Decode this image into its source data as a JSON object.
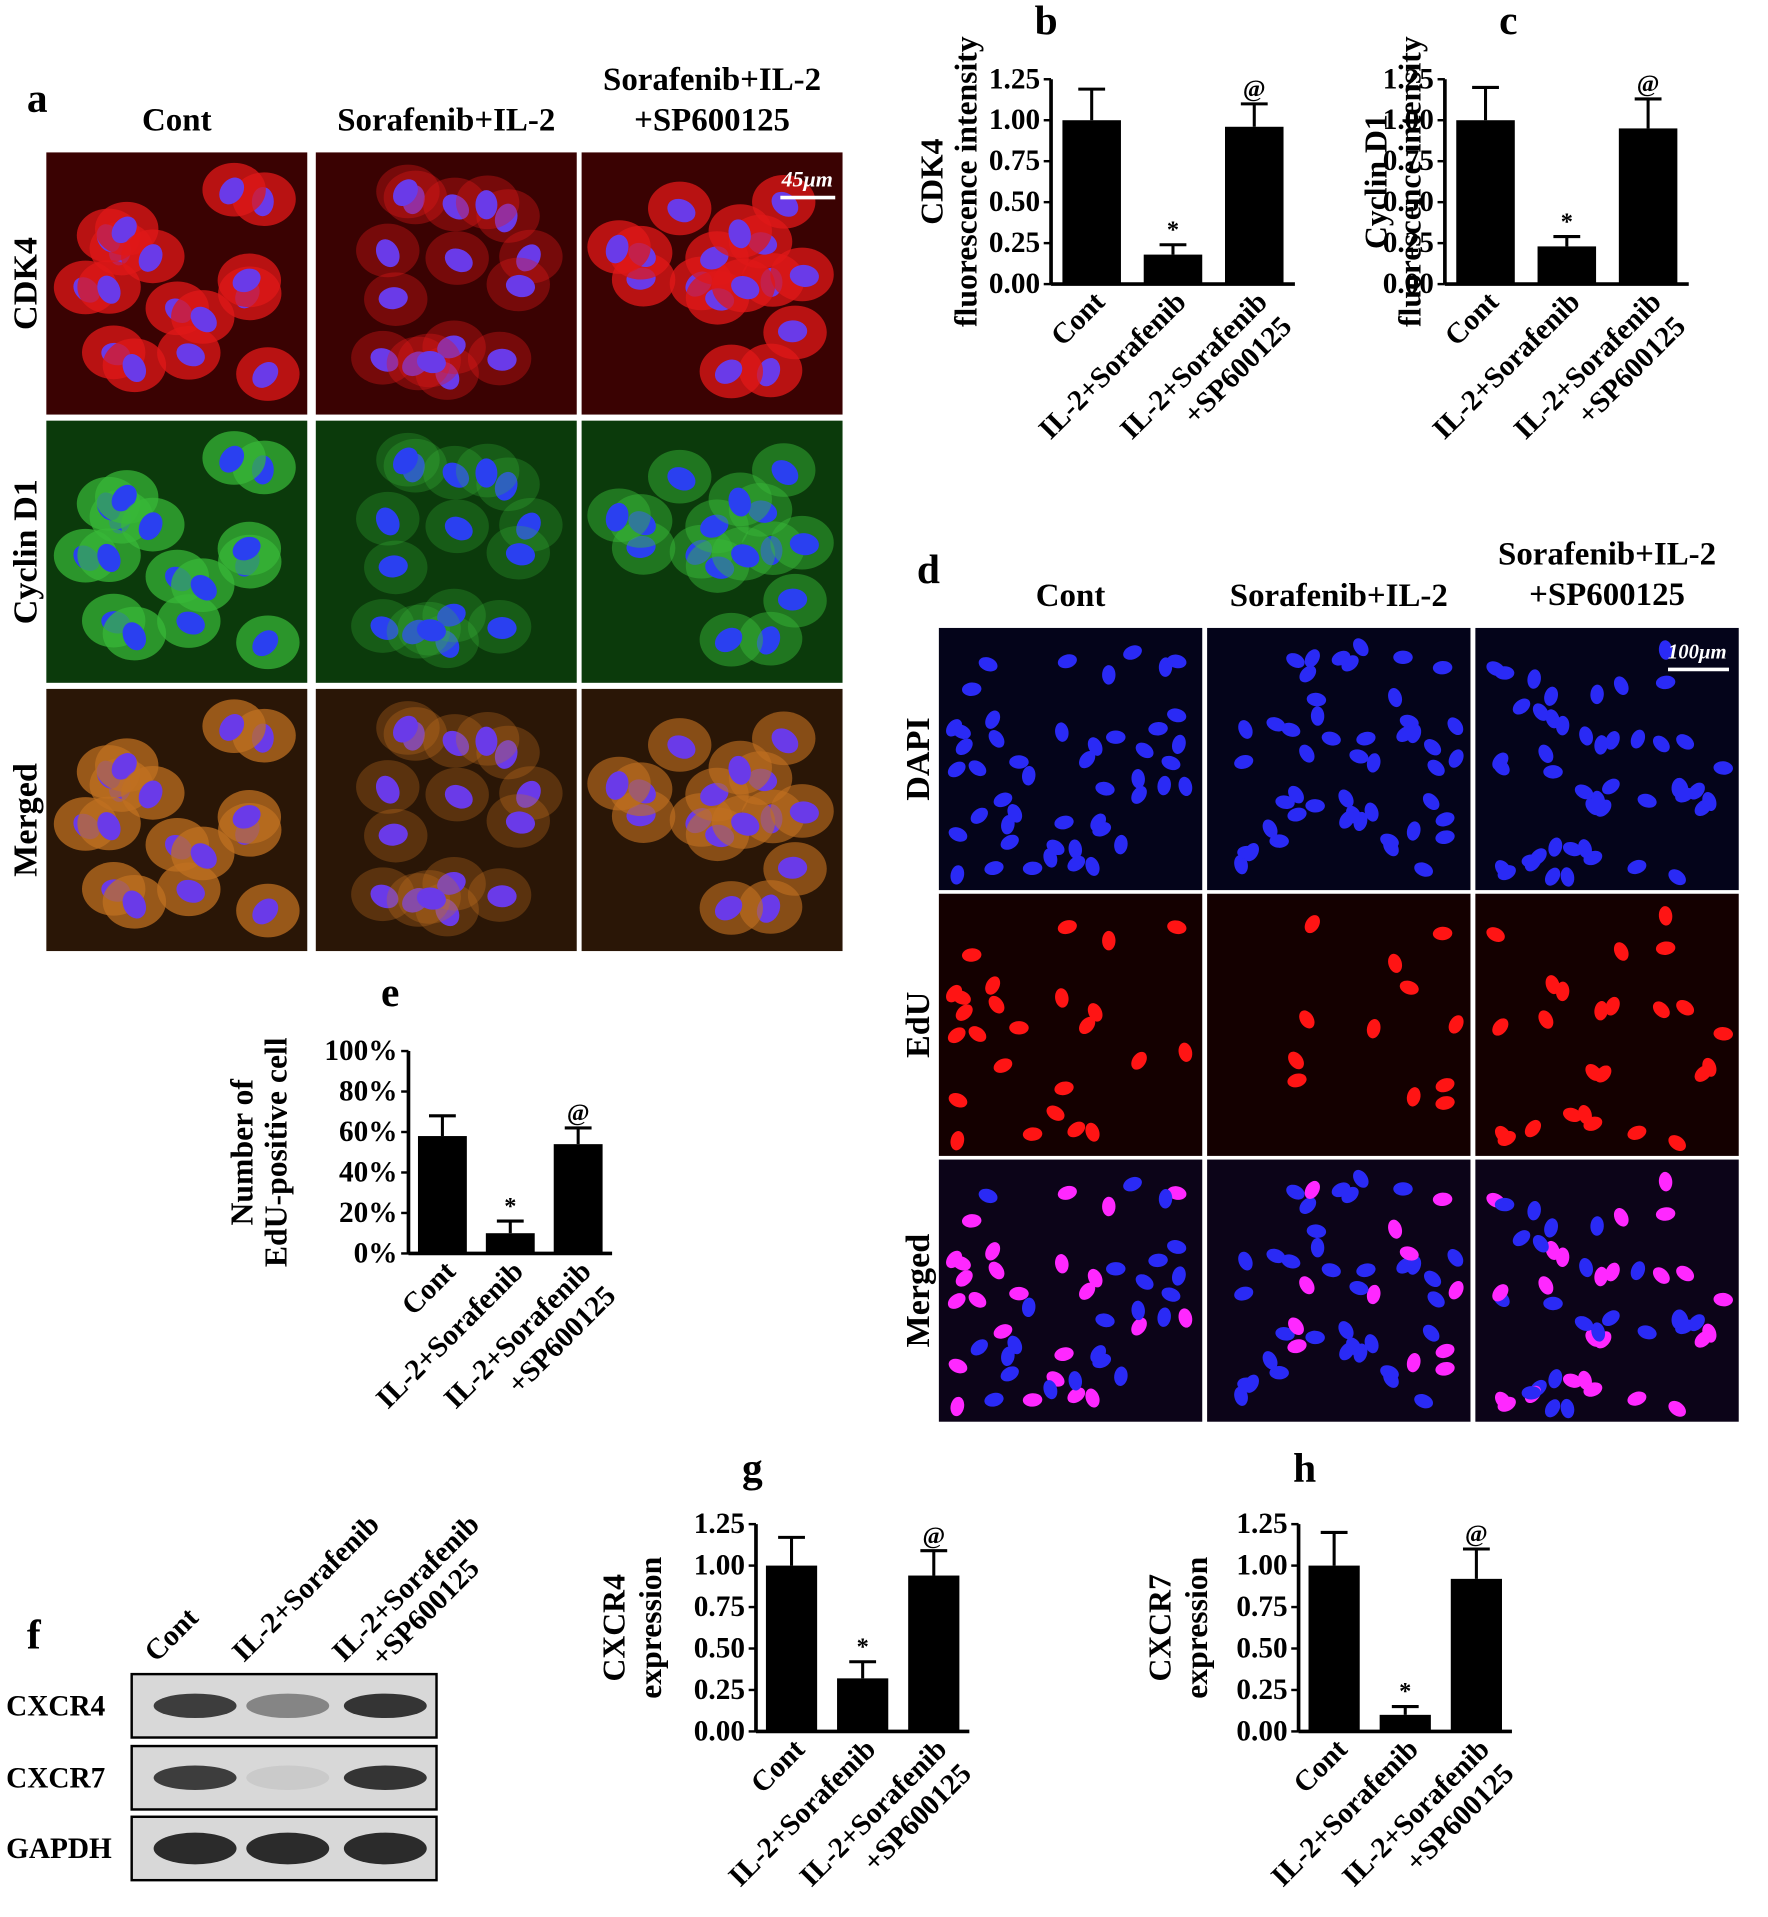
{
  "panel_a": {
    "label": "a",
    "columns": [
      [
        "Cont"
      ],
      [
        "Sorafenib+IL-2"
      ],
      [
        "Sorafenib+IL-2",
        "+SP600125"
      ]
    ],
    "rows": [
      "CDK4",
      "Cyclin D1",
      "Merged"
    ],
    "scale_bar": "45μm"
  },
  "panel_d": {
    "label": "d",
    "columns": [
      [
        "Cont"
      ],
      [
        "Sorafenib+IL-2"
      ],
      [
        "Sorafenib+IL-2",
        "+SP600125"
      ]
    ],
    "rows": [
      "DAPI",
      "EdU",
      "Merged"
    ],
    "scale_bar": "100μm"
  },
  "panel_f": {
    "label": "f",
    "lanes": [
      [
        "Cont"
      ],
      [
        "IL-2+Sorafenib"
      ],
      [
        "IL-2+Sorafenib",
        "+SP600125"
      ]
    ],
    "rows": [
      "CXCR4",
      "CXCR7",
      "GAPDH"
    ]
  },
  "chart_data": [
    {
      "type": "bar",
      "label": "b",
      "ylabel": [
        "CDK4",
        "fluorescence intensity"
      ],
      "categories": [
        [
          "Cont"
        ],
        [
          "IL-2+Sorafenib"
        ],
        [
          "IL-2+Sorafenib",
          "+SP600125"
        ]
      ],
      "values": [
        1.0,
        0.18,
        0.96
      ],
      "errors": [
        0.19,
        0.06,
        0.14
      ],
      "annotations": [
        null,
        "*",
        "@"
      ],
      "color": "#000000",
      "ylim": [
        0,
        1.25
      ],
      "yticks": [
        {
          "value": 0,
          "label": "0.00"
        },
        {
          "value": 0.25,
          "label": "0.25"
        },
        {
          "value": 0.5,
          "label": "0.50"
        },
        {
          "value": 0.75,
          "label": "0.75"
        },
        {
          "value": 1,
          "label": "1.00"
        },
        {
          "value": 1.25,
          "label": "1.25"
        }
      ]
    },
    {
      "type": "bar",
      "label": "c",
      "ylabel": [
        "Cyclin D1",
        "fluorescence intensity"
      ],
      "categories": [
        [
          "Cont"
        ],
        [
          "IL-2+Sorafenib"
        ],
        [
          "IL-2+Sorafenib",
          "+SP600125"
        ]
      ],
      "values": [
        1.0,
        0.23,
        0.95
      ],
      "errors": [
        0.2,
        0.06,
        0.18
      ],
      "annotations": [
        null,
        "*",
        "@"
      ],
      "color": "#000000",
      "ylim": [
        0,
        1.25
      ],
      "yticks": [
        {
          "value": 0,
          "label": "0.00"
        },
        {
          "value": 0.25,
          "label": "0.25"
        },
        {
          "value": 0.5,
          "label": "0.50"
        },
        {
          "value": 0.75,
          "label": "0.75"
        },
        {
          "value": 1,
          "label": "1.00"
        },
        {
          "value": 1.25,
          "label": "1.25"
        }
      ]
    },
    {
      "type": "bar",
      "label": "e",
      "ylabel": [
        "Number of",
        "EdU-positive cell"
      ],
      "categories": [
        [
          "Cont"
        ],
        [
          "IL-2+Sorafenib"
        ],
        [
          "IL-2+Sorafenib",
          "+SP600125"
        ]
      ],
      "values": [
        58,
        10,
        54
      ],
      "errors": [
        10,
        6,
        8
      ],
      "annotations": [
        null,
        "*",
        "@"
      ],
      "color": "#000000",
      "ylim": [
        0,
        100
      ],
      "yticks": [
        {
          "value": 0,
          "label": "0%"
        },
        {
          "value": 20,
          "label": "20%"
        },
        {
          "value": 40,
          "label": "40%"
        },
        {
          "value": 60,
          "label": "60%"
        },
        {
          "value": 80,
          "label": "80%"
        },
        {
          "value": 100,
          "label": "100%"
        }
      ]
    },
    {
      "type": "bar",
      "label": "g",
      "ylabel": [
        "CXCR4",
        "expression"
      ],
      "categories": [
        [
          "Cont"
        ],
        [
          "IL-2+Sorafenib"
        ],
        [
          "IL-2+Sorafenib",
          "+SP600125"
        ]
      ],
      "values": [
        1.0,
        0.32,
        0.94
      ],
      "errors": [
        0.17,
        0.1,
        0.15
      ],
      "annotations": [
        null,
        "*",
        "@"
      ],
      "color": "#000000",
      "ylim": [
        0,
        1.25
      ],
      "yticks": [
        {
          "value": 0,
          "label": "0.00"
        },
        {
          "value": 0.25,
          "label": "0.25"
        },
        {
          "value": 0.5,
          "label": "0.50"
        },
        {
          "value": 0.75,
          "label": "0.75"
        },
        {
          "value": 1,
          "label": "1.00"
        },
        {
          "value": 1.25,
          "label": "1.25"
        }
      ]
    },
    {
      "type": "bar",
      "label": "h",
      "ylabel": [
        "CXCR7",
        "expression"
      ],
      "categories": [
        [
          "Cont"
        ],
        [
          "IL-2+Sorafenib"
        ],
        [
          "IL-2+Sorafenib",
          "+SP600125"
        ]
      ],
      "values": [
        1.0,
        0.1,
        0.92
      ],
      "errors": [
        0.2,
        0.05,
        0.18
      ],
      "annotations": [
        null,
        "*",
        "@"
      ],
      "color": "#000000",
      "ylim": [
        0,
        1.25
      ],
      "yticks": [
        {
          "value": 0,
          "label": "0.00"
        },
        {
          "value": 0.25,
          "label": "0.25"
        },
        {
          "value": 0.5,
          "label": "0.50"
        },
        {
          "value": 0.75,
          "label": "0.75"
        },
        {
          "value": 1,
          "label": "1.00"
        },
        {
          "value": 1.25,
          "label": "1.25"
        }
      ]
    }
  ]
}
